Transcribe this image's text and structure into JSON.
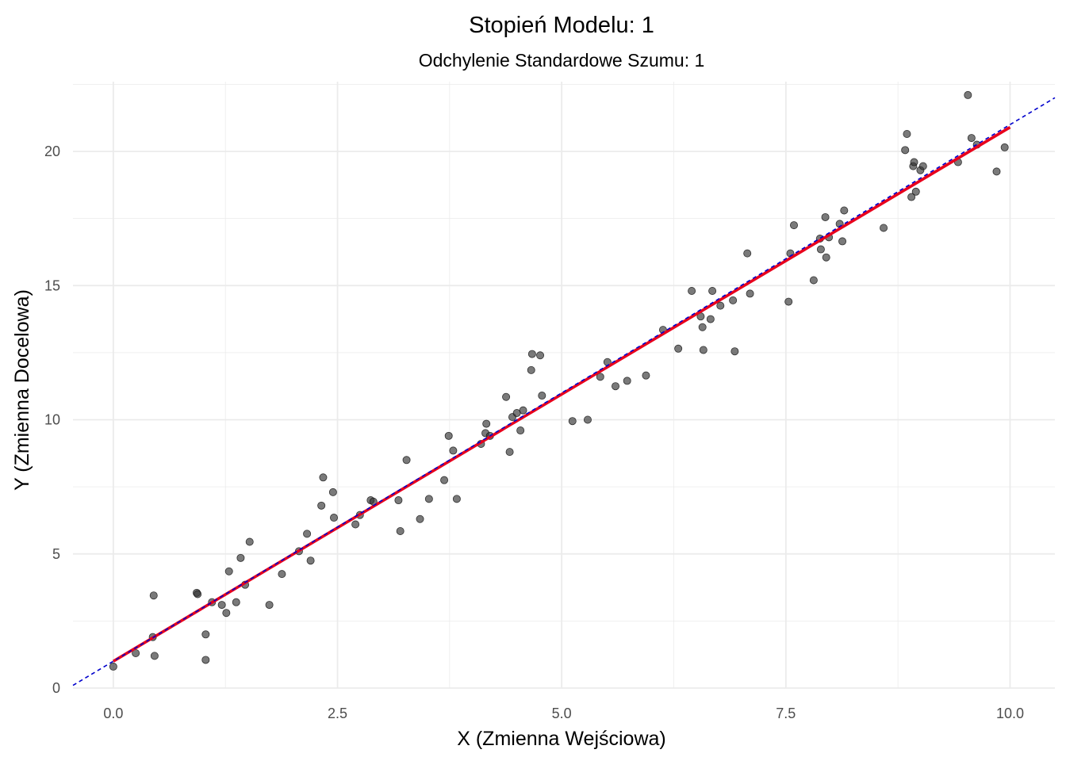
{
  "chart_data": {
    "type": "scatter",
    "title": "Stopień Modelu: 1",
    "subtitle": "Odchylenie Standardowe Szumu: 1",
    "xlabel": "X (Zmienna Wejściowa)",
    "ylabel": "Y (Zmienna Docelowa)",
    "xlim": [
      -0.45,
      10.5
    ],
    "ylim": [
      0,
      22.6
    ],
    "x_ticks": [
      0.0,
      2.5,
      5.0,
      7.5,
      10.0
    ],
    "x_tick_labels": [
      "0.0",
      "2.5",
      "5.0",
      "7.5",
      "10.0"
    ],
    "y_ticks": [
      0,
      5,
      10,
      15,
      20
    ],
    "y_tick_labels": [
      "0",
      "5",
      "10",
      "15",
      "20"
    ],
    "grid": true,
    "colors": {
      "points": "#333333",
      "fit_line": "#e8001c",
      "true_line": "#0000cc",
      "grid": "#ebebeb"
    },
    "fit_line": {
      "x": [
        0.0,
        10.0
      ],
      "y": [
        1.0,
        20.9
      ]
    },
    "true_line": {
      "x": [
        -0.45,
        10.5
      ],
      "y": [
        0.1,
        22.0
      ],
      "style": "dashed"
    },
    "points": [
      [
        0.0,
        0.8
      ],
      [
        0.25,
        1.3
      ],
      [
        0.44,
        1.9
      ],
      [
        0.45,
        3.45
      ],
      [
        0.46,
        1.2
      ],
      [
        0.93,
        3.55
      ],
      [
        0.94,
        3.5
      ],
      [
        1.03,
        2.0
      ],
      [
        1.03,
        1.05
      ],
      [
        1.1,
        3.2
      ],
      [
        1.21,
        3.1
      ],
      [
        1.26,
        2.8
      ],
      [
        1.29,
        4.35
      ],
      [
        1.37,
        3.2
      ],
      [
        1.42,
        4.85
      ],
      [
        1.47,
        3.85
      ],
      [
        1.52,
        5.45
      ],
      [
        1.74,
        3.1
      ],
      [
        1.88,
        4.25
      ],
      [
        2.07,
        5.1
      ],
      [
        2.16,
        5.75
      ],
      [
        2.2,
        4.75
      ],
      [
        2.32,
        6.8
      ],
      [
        2.34,
        7.85
      ],
      [
        2.45,
        7.3
      ],
      [
        2.46,
        6.35
      ],
      [
        2.7,
        6.1
      ],
      [
        2.75,
        6.45
      ],
      [
        2.87,
        7.0
      ],
      [
        2.9,
        6.95
      ],
      [
        3.18,
        7.0
      ],
      [
        3.2,
        5.85
      ],
      [
        3.27,
        8.5
      ],
      [
        3.42,
        6.3
      ],
      [
        3.52,
        7.05
      ],
      [
        3.69,
        7.75
      ],
      [
        3.74,
        9.4
      ],
      [
        3.79,
        8.85
      ],
      [
        3.83,
        7.05
      ],
      [
        4.1,
        9.1
      ],
      [
        4.15,
        9.5
      ],
      [
        4.16,
        9.85
      ],
      [
        4.2,
        9.4
      ],
      [
        4.38,
        10.85
      ],
      [
        4.42,
        8.8
      ],
      [
        4.45,
        10.1
      ],
      [
        4.5,
        10.25
      ],
      [
        4.54,
        9.6
      ],
      [
        4.57,
        10.35
      ],
      [
        4.66,
        11.85
      ],
      [
        4.67,
        12.45
      ],
      [
        4.76,
        12.4
      ],
      [
        4.78,
        10.9
      ],
      [
        5.12,
        9.95
      ],
      [
        5.29,
        10.0
      ],
      [
        5.43,
        11.6
      ],
      [
        5.51,
        12.15
      ],
      [
        5.6,
        11.25
      ],
      [
        5.73,
        11.45
      ],
      [
        5.94,
        11.65
      ],
      [
        6.13,
        13.35
      ],
      [
        6.3,
        12.65
      ],
      [
        6.45,
        14.8
      ],
      [
        6.55,
        13.85
      ],
      [
        6.57,
        13.45
      ],
      [
        6.58,
        12.6
      ],
      [
        6.66,
        13.75
      ],
      [
        6.68,
        14.8
      ],
      [
        6.77,
        14.25
      ],
      [
        6.91,
        14.45
      ],
      [
        6.93,
        12.55
      ],
      [
        7.07,
        16.2
      ],
      [
        7.1,
        14.7
      ],
      [
        7.53,
        14.4
      ],
      [
        7.55,
        16.2
      ],
      [
        7.59,
        17.25
      ],
      [
        7.81,
        15.2
      ],
      [
        7.88,
        16.75
      ],
      [
        7.89,
        16.35
      ],
      [
        7.94,
        17.55
      ],
      [
        7.95,
        16.05
      ],
      [
        7.98,
        16.8
      ],
      [
        8.1,
        17.3
      ],
      [
        8.13,
        16.65
      ],
      [
        8.15,
        17.8
      ],
      [
        8.59,
        17.15
      ],
      [
        8.83,
        20.05
      ],
      [
        8.85,
        20.65
      ],
      [
        8.9,
        18.3
      ],
      [
        8.92,
        19.45
      ],
      [
        8.93,
        19.6
      ],
      [
        8.95,
        18.5
      ],
      [
        9.0,
        19.3
      ],
      [
        9.03,
        19.45
      ],
      [
        9.42,
        19.6
      ],
      [
        9.53,
        22.1
      ],
      [
        9.57,
        20.5
      ],
      [
        9.63,
        20.25
      ],
      [
        9.85,
        19.25
      ],
      [
        9.94,
        20.15
      ]
    ]
  }
}
